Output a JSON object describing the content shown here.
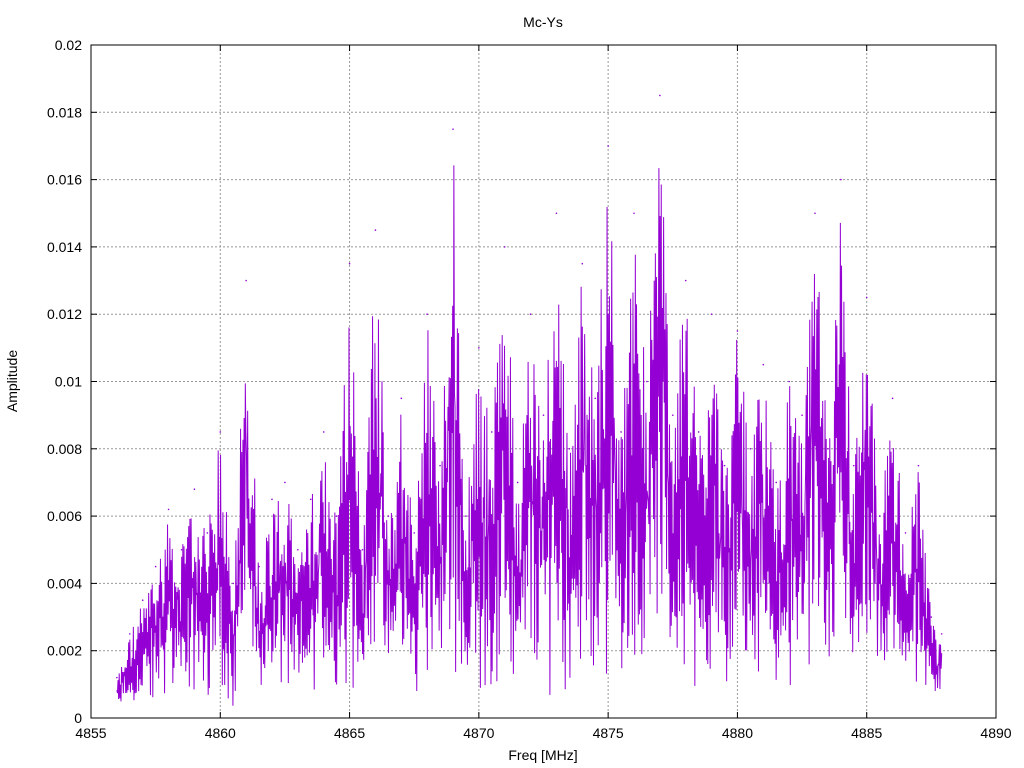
{
  "chart_data": {
    "type": "line",
    "title": "Mc-Ys",
    "xlabel": "Freq [MHz]",
    "ylabel": "Amplitude",
    "xlim": [
      4855,
      4890
    ],
    "ylim": [
      0,
      0.02
    ],
    "x_ticks": [
      "4855",
      "4860",
      "4865",
      "4870",
      "4875",
      "4880",
      "4885",
      "4890"
    ],
    "y_ticks": [
      "0",
      "0.002",
      "0.004",
      "0.006",
      "0.008",
      "0.01",
      "0.012",
      "0.014",
      "0.016",
      "0.018",
      "0.02"
    ],
    "grid": true,
    "legend": "none",
    "series": [
      {
        "color": "#9400d3",
        "x": [
          4856.0,
          4856.5,
          4857.0,
          4857.5,
          4858.0,
          4858.5,
          4859.0,
          4859.5,
          4860.0,
          4860.5,
          4861.0,
          4861.5,
          4862.0,
          4862.5,
          4863.0,
          4863.5,
          4864.0,
          4864.5,
          4865.0,
          4865.5,
          4866.0,
          4866.5,
          4867.0,
          4867.5,
          4868.0,
          4868.5,
          4869.0,
          4869.5,
          4870.0,
          4870.5,
          4871.0,
          4871.5,
          4872.0,
          4872.5,
          4873.0,
          4873.5,
          4874.0,
          4874.5,
          4875.0,
          4875.5,
          4876.0,
          4876.5,
          4877.0,
          4877.5,
          4878.0,
          4878.5,
          4879.0,
          4879.5,
          4880.0,
          4880.5,
          4881.0,
          4881.5,
          4882.0,
          4882.5,
          4883.0,
          4883.5,
          4884.0,
          4884.5,
          4885.0,
          4885.5,
          4886.0,
          4886.5,
          4887.0,
          4887.5,
          4887.9
        ],
        "y": [
          0.0012,
          0.0025,
          0.0035,
          0.0045,
          0.0062,
          0.005,
          0.0068,
          0.0055,
          0.0085,
          0.004,
          0.013,
          0.0045,
          0.0065,
          0.007,
          0.005,
          0.0065,
          0.0085,
          0.006,
          0.0135,
          0.005,
          0.0145,
          0.006,
          0.0095,
          0.0055,
          0.012,
          0.0075,
          0.0175,
          0.006,
          0.011,
          0.0085,
          0.014,
          0.007,
          0.012,
          0.009,
          0.015,
          0.008,
          0.0135,
          0.0095,
          0.017,
          0.0085,
          0.015,
          0.01,
          0.0185,
          0.009,
          0.013,
          0.0085,
          0.012,
          0.0075,
          0.0115,
          0.008,
          0.0105,
          0.007,
          0.01,
          0.009,
          0.015,
          0.008,
          0.016,
          0.0075,
          0.0125,
          0.006,
          0.0095,
          0.0055,
          0.0075,
          0.003,
          0.0025
        ]
      }
    ]
  }
}
